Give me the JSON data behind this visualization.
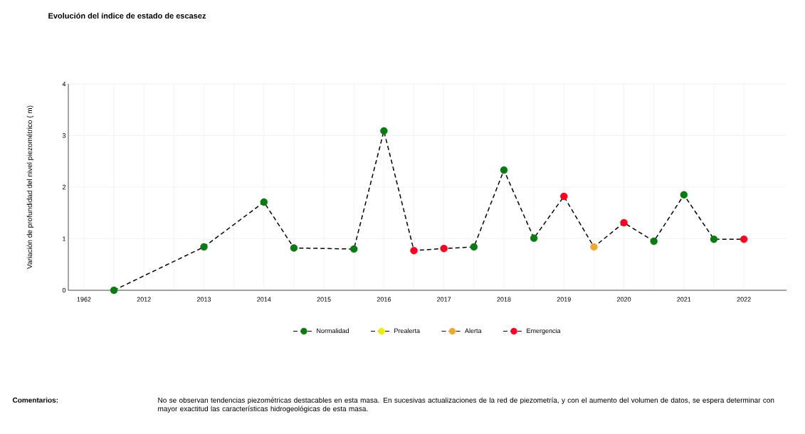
{
  "chart_data": {
    "type": "line",
    "title": "Evolución del índice de estado de escasez",
    "ylabel": "Variación de profundidad del nivel piezométrico ( m)",
    "categories": [
      "1962",
      null,
      "2012",
      null,
      "2013",
      null,
      "2014",
      null,
      "2015",
      null,
      "2016",
      null,
      "2017",
      null,
      "2018",
      null,
      "2019",
      null,
      "2020",
      null,
      "2021",
      null,
      "2022"
    ],
    "ylim": [
      0,
      4
    ],
    "yticks": [
      0,
      1,
      2,
      3,
      4
    ],
    "grid": true,
    "legend": "bottom",
    "series": [
      {
        "color": "#000000",
        "line_style": "dashed",
        "values": [
          null,
          0.0,
          null,
          null,
          0.84,
          null,
          1.71,
          0.82,
          null,
          0.8,
          3.09,
          0.77,
          0.81,
          0.84,
          2.33,
          1.01,
          1.82,
          0.84,
          1.31,
          0.95,
          1.85,
          0.99,
          0.99
        ]
      },
      {
        "type": "scatter",
        "name": "Normalidad",
        "color": "#0a7a12",
        "marker": "circle",
        "values": [
          null,
          0.0,
          null,
          null,
          0.84,
          null,
          1.71,
          0.82,
          null,
          0.8,
          3.09,
          null,
          null,
          0.84,
          2.33,
          1.01,
          null,
          null,
          null,
          0.95,
          1.85,
          0.99,
          null
        ]
      },
      {
        "type": "scatter",
        "name": "Prealerta",
        "color": "#e8f000",
        "marker": "circle",
        "values": [
          null,
          null,
          null,
          null,
          null,
          null,
          null,
          null,
          null,
          null,
          null,
          null,
          null,
          null,
          null,
          null,
          null,
          null,
          null,
          null,
          null,
          null,
          null
        ]
      },
      {
        "type": "scatter",
        "name": "Alerta",
        "color": "#f0a830",
        "marker": "circle",
        "values": [
          null,
          null,
          null,
          null,
          null,
          null,
          null,
          null,
          null,
          null,
          null,
          null,
          null,
          null,
          null,
          null,
          null,
          0.84,
          null,
          null,
          null,
          null,
          null
        ]
      },
      {
        "type": "scatter",
        "name": "Emergencia",
        "color": "#ff0022",
        "marker": "circle",
        "values": [
          null,
          null,
          null,
          null,
          null,
          null,
          null,
          null,
          null,
          null,
          null,
          0.77,
          0.81,
          null,
          null,
          null,
          1.82,
          null,
          1.31,
          null,
          null,
          null,
          0.99
        ]
      }
    ],
    "annotations": [
      "Comentarios:",
      "No se observan tendencias piezométricas destacables en esta masa. En sucesivas actualizaciones de la red de piezometría, y con el aumento del volumen de datos, se espera determinar con mayor exactitud las características hidrogeológicas de esta masa."
    ]
  }
}
